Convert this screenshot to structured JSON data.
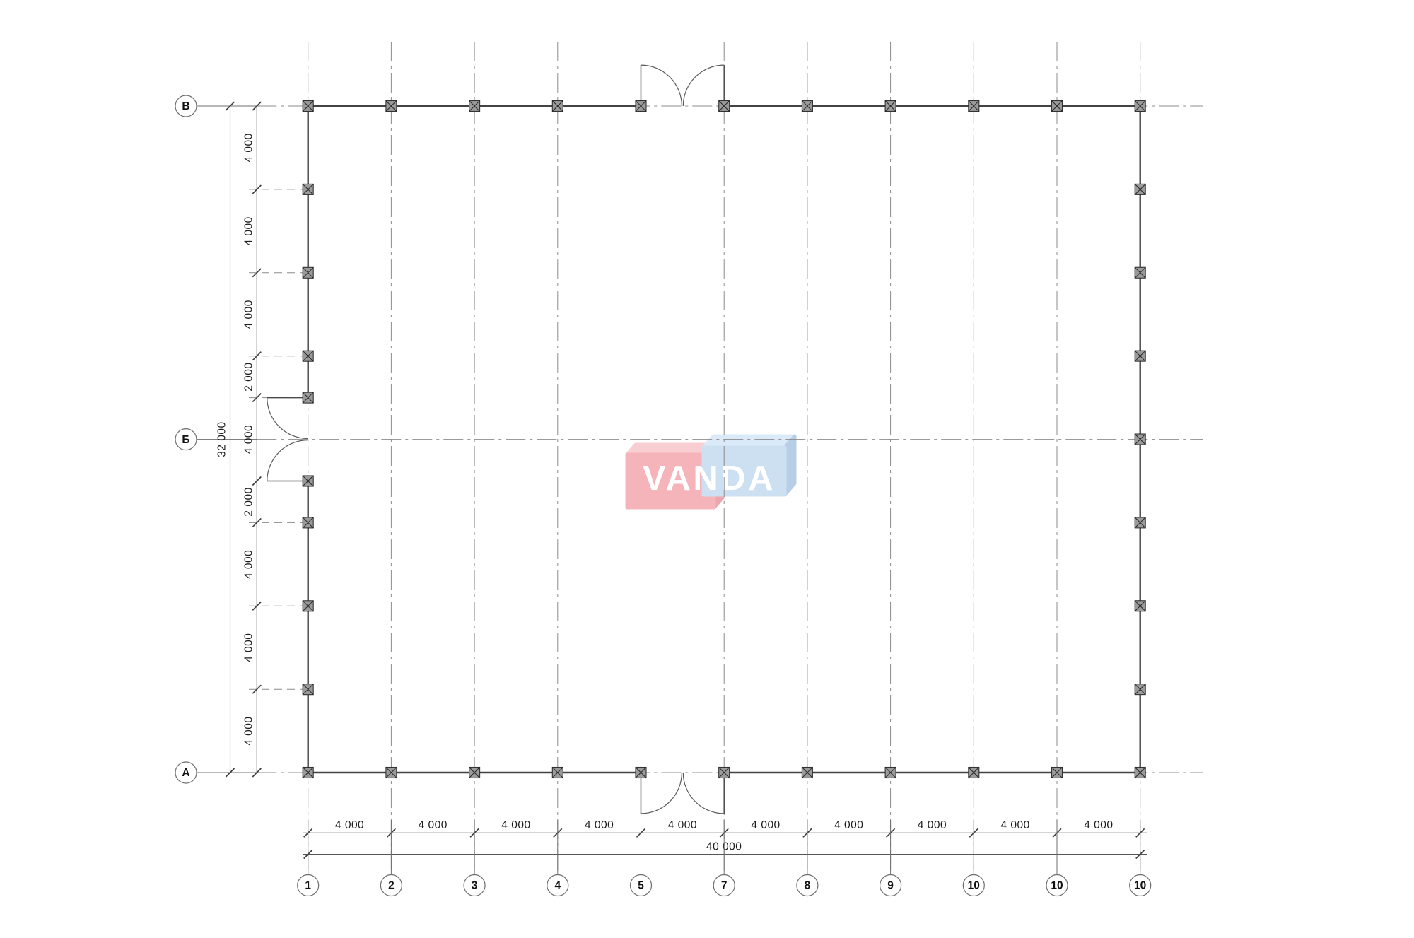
{
  "drawing": {
    "kind": "architectural floor plan",
    "axes": {
      "rows": {
        "labels": [
          "В",
          "Б",
          "А"
        ]
      },
      "columns": {
        "labels": [
          "1",
          "2",
          "3",
          "4",
          "5",
          "7",
          "8",
          "9",
          "10",
          "10",
          "10"
        ]
      }
    },
    "dimensions": {
      "left": {
        "segments": [
          "4 000",
          "4 000",
          "4 000",
          "2 000",
          "4 000",
          "2 000",
          "4 000",
          "4 000",
          "4 000"
        ],
        "overall": "32 000"
      },
      "bottom": {
        "segments": [
          "4 000",
          "4 000",
          "4 000",
          "4 000",
          "4 000",
          "4 000",
          "4 000",
          "4 000",
          "4 000",
          "4 000"
        ],
        "overall": "40 000"
      }
    },
    "watermark": {
      "text": "VANDA",
      "text_color": "#ffffff",
      "red_front": "#f5b4ba",
      "red_top": "#f9ced2",
      "red_side": "#eda6ad",
      "blue_front": "#cde0f2",
      "blue_top": "#dbeaf8",
      "blue_side": "#b6cfe6"
    }
  }
}
